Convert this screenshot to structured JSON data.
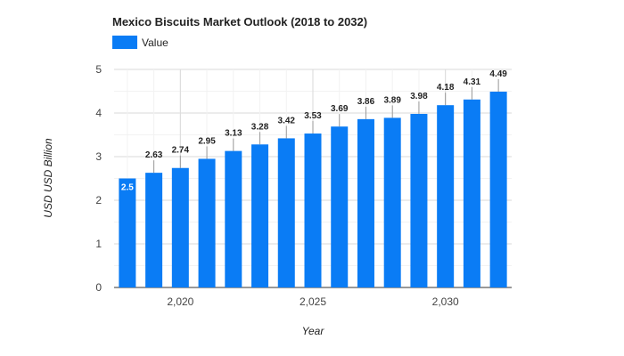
{
  "chart_data": {
    "type": "bar",
    "title": "Mexico Biscuits Market Outlook (2018 to 2032)",
    "xlabel": "Year",
    "ylabel": "USD USD Billion",
    "legend": {
      "placement": "top-left",
      "entries": [
        "Value"
      ]
    },
    "x": [
      2018,
      2019,
      2020,
      2021,
      2022,
      2023,
      2024,
      2025,
      2026,
      2027,
      2028,
      2029,
      2030,
      2031,
      2032
    ],
    "x_tick_labels": [
      {
        "x": 2020,
        "label": "2,020"
      },
      {
        "x": 2025,
        "label": "2,025"
      },
      {
        "x": 2030,
        "label": "2,030"
      }
    ],
    "y_ticks": [
      "0",
      "1",
      "2",
      "3",
      "4",
      "5"
    ],
    "ylim": [
      0,
      5
    ],
    "grid": true,
    "series": [
      {
        "name": "Value",
        "color": "#0a7cf5",
        "values": [
          2.5,
          2.63,
          2.74,
          2.95,
          3.13,
          3.28,
          3.42,
          3.53,
          3.69,
          3.86,
          3.89,
          3.98,
          4.18,
          4.31,
          4.49
        ],
        "labels": [
          "2.5",
          "2.63",
          "2.74",
          "2.95",
          "3.13",
          "3.28",
          "3.42",
          "3.53",
          "3.69",
          "3.86",
          "3.89",
          "3.98",
          "4.18",
          "4.31",
          "4.49"
        ]
      }
    ]
  }
}
